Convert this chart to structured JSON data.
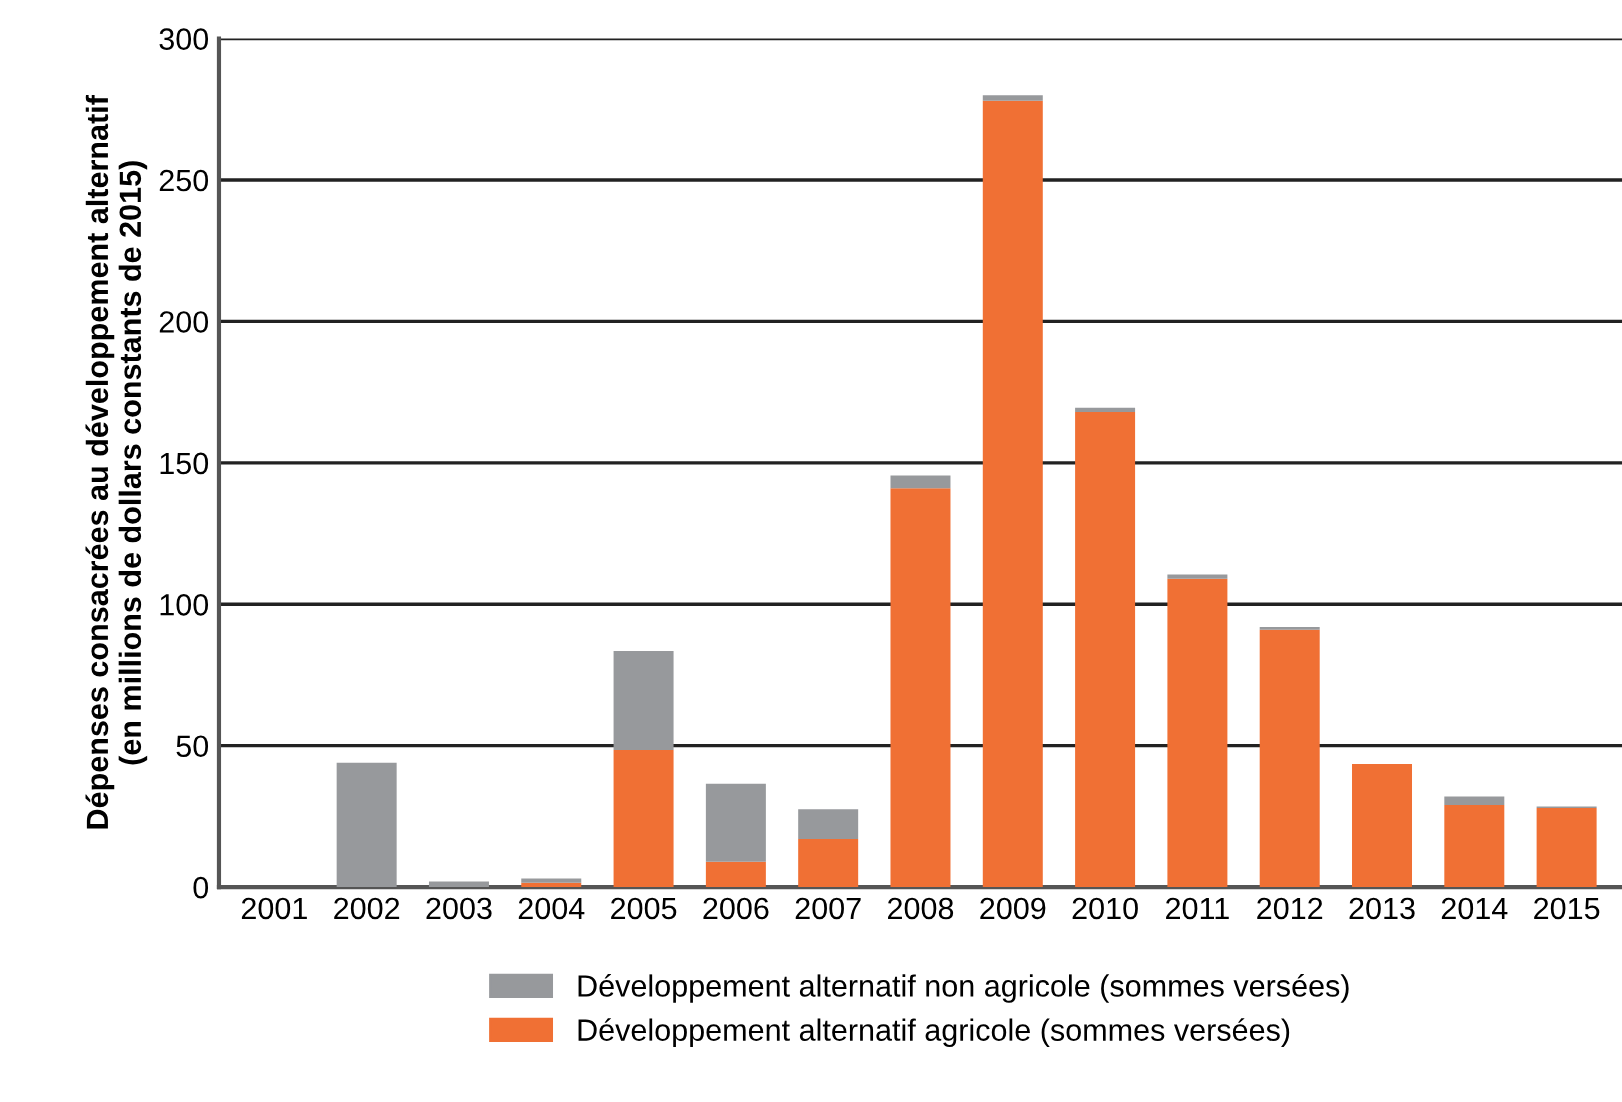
{
  "chart_data": {
    "type": "bar",
    "stacked": true,
    "ylabel": "Dépenses consacrées au développement alternatif\n(en millions de dollars constants de 2015)",
    "categories": [
      "2001",
      "2002",
      "2003",
      "2004",
      "2005",
      "2006",
      "2007",
      "2008",
      "2009",
      "2010",
      "2011",
      "2012",
      "2013",
      "2014",
      "2015"
    ],
    "series": [
      {
        "name": "Développement alternatif agricole (sommes versées)",
        "color": "#f07034",
        "values": [
          0,
          0,
          0,
          1.5,
          48.5,
          9,
          17,
          141,
          278,
          168,
          109,
          91,
          43.5,
          29,
          28
        ]
      },
      {
        "name": "Développement alternatif non agricole (sommes versées)",
        "color": "#97999c",
        "values": [
          0,
          44,
          2,
          1.5,
          35,
          27.5,
          10.5,
          4.5,
          2,
          1.5,
          1.5,
          1,
          0,
          3,
          0.5
        ]
      }
    ],
    "ylim": [
      0,
      300
    ],
    "yticks": [
      0,
      50,
      100,
      150,
      200,
      250,
      300
    ],
    "grid": "y",
    "legend": "bottom"
  }
}
